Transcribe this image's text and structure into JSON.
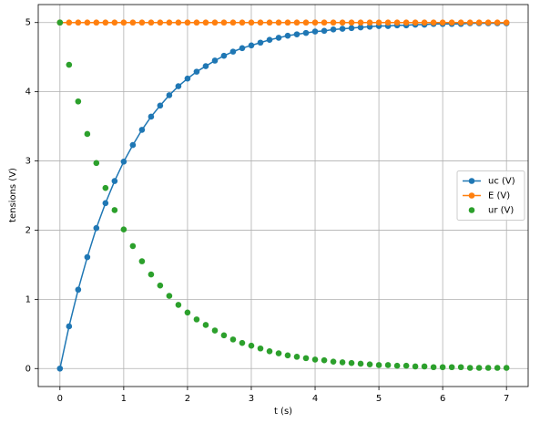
{
  "chart_data": {
    "type": "line",
    "xlabel": "t (s)",
    "ylabel": "tensions (V)",
    "x": [
      0,
      0.143,
      0.286,
      0.429,
      0.571,
      0.714,
      0.857,
      1,
      1.143,
      1.286,
      1.429,
      1.571,
      1.714,
      1.857,
      2,
      2.143,
      2.286,
      2.429,
      2.571,
      2.714,
      2.857,
      3,
      3.143,
      3.286,
      3.429,
      3.571,
      3.714,
      3.857,
      4,
      4.143,
      4.286,
      4.429,
      4.571,
      4.714,
      4.857,
      5,
      5.143,
      5.286,
      5.429,
      5.571,
      5.714,
      5.857,
      6,
      6.143,
      6.286,
      6.429,
      6.571,
      6.714,
      6.857,
      7
    ],
    "series": [
      {
        "name": "uc (V)",
        "color": "#1f77b4",
        "style": "line-marker",
        "values": [
          0,
          0.61,
          1.14,
          1.61,
          2.03,
          2.39,
          2.71,
          2.99,
          3.23,
          3.45,
          3.64,
          3.8,
          3.95,
          4.08,
          4.19,
          4.29,
          4.37,
          4.45,
          4.52,
          4.58,
          4.63,
          4.67,
          4.71,
          4.75,
          4.78,
          4.81,
          4.83,
          4.85,
          4.87,
          4.88,
          4.9,
          4.91,
          4.92,
          4.93,
          4.94,
          4.95,
          4.95,
          4.96,
          4.96,
          4.97,
          4.97,
          4.98,
          4.98,
          4.98,
          4.98,
          4.99,
          4.99,
          4.99,
          4.99,
          4.99
        ]
      },
      {
        "name": "E (V)",
        "color": "#ff7f0e",
        "style": "line-marker",
        "values": [
          5,
          5,
          5,
          5,
          5,
          5,
          5,
          5,
          5,
          5,
          5,
          5,
          5,
          5,
          5,
          5,
          5,
          5,
          5,
          5,
          5,
          5,
          5,
          5,
          5,
          5,
          5,
          5,
          5,
          5,
          5,
          5,
          5,
          5,
          5,
          5,
          5,
          5,
          5,
          5,
          5,
          5,
          5,
          5,
          5,
          5,
          5,
          5,
          5,
          5
        ]
      },
      {
        "name": "ur (V)",
        "color": "#2ca02c",
        "style": "marker",
        "values": [
          5,
          4.39,
          3.86,
          3.39,
          2.97,
          2.61,
          2.29,
          2.01,
          1.77,
          1.55,
          1.36,
          1.2,
          1.05,
          0.92,
          0.81,
          0.71,
          0.63,
          0.55,
          0.48,
          0.42,
          0.37,
          0.33,
          0.29,
          0.25,
          0.22,
          0.19,
          0.17,
          0.15,
          0.13,
          0.12,
          0.1,
          0.09,
          0.08,
          0.07,
          0.06,
          0.05,
          0.05,
          0.04,
          0.04,
          0.03,
          0.03,
          0.02,
          0.02,
          0.02,
          0.02,
          0.01,
          0.01,
          0.01,
          0.01,
          0.01
        ]
      }
    ],
    "xlim": [
      -0.34,
      7.34
    ],
    "ylim": [
      -0.26,
      5.26
    ],
    "xticks": [
      0,
      1,
      2,
      3,
      4,
      5,
      6,
      7
    ],
    "yticks": [
      0,
      1,
      2,
      3,
      4,
      5
    ],
    "grid": true,
    "legend": "center right"
  }
}
